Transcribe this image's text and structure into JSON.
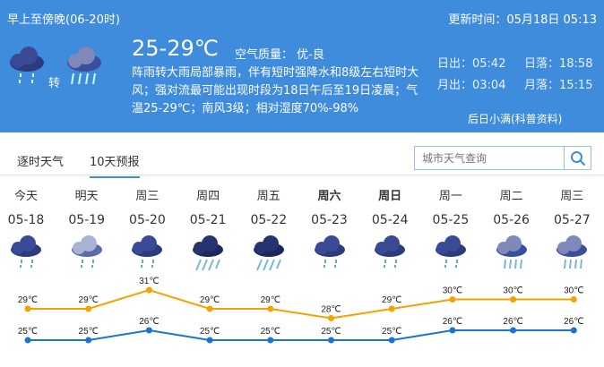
{
  "header": {
    "period": "早上至傍晚(06-20时)",
    "update_time": "更新时间：05月18日 05:13",
    "temp_range": "25-29℃",
    "air_quality": "空气质量： 优-良",
    "transition": "转",
    "description": "阵雨转大雨局部暴雨，伴有短时强降水和8级左右短时大风；强对流最可能出现时段为18日午后至19日凌晨；气温25-29℃；南风3级；相对湿度70%-98%",
    "sunrise": "日出：05:42",
    "sunset": "日落：18:58",
    "moonrise": "月出：03:04",
    "moonset": "月落：15:15",
    "tip_link": "后日小满(科普资料)",
    "icons": [
      "shower-rain-icon",
      "heavy-rain-icon"
    ]
  },
  "tabs": [
    {
      "label": "逐时天气"
    },
    {
      "label": "10天预报",
      "active": true
    }
  ],
  "search": {
    "placeholder": "城市天气查询"
  },
  "forecast": [
    {
      "day": "今天",
      "date": "05-18",
      "icon": "shower",
      "high": "29℃",
      "low": "25℃",
      "bold": false
    },
    {
      "day": "明天",
      "date": "05-19",
      "icon": "light-rain",
      "high": "29℃",
      "low": "25℃",
      "bold": false
    },
    {
      "day": "周三",
      "date": "05-20",
      "icon": "shower",
      "high": "31℃",
      "low": "26℃",
      "bold": false
    },
    {
      "day": "周四",
      "date": "05-21",
      "icon": "rainstorm",
      "high": "29℃",
      "low": "25℃",
      "bold": false
    },
    {
      "day": "周五",
      "date": "05-22",
      "icon": "rainstorm",
      "high": "29℃",
      "low": "25℃",
      "bold": false
    },
    {
      "day": "周六",
      "date": "05-23",
      "icon": "shower",
      "high": "28℃",
      "low": "25℃",
      "bold": true
    },
    {
      "day": "周日",
      "date": "05-24",
      "icon": "shower",
      "high": "29℃",
      "low": "25℃",
      "bold": true
    },
    {
      "day": "周一",
      "date": "05-25",
      "icon": "shower",
      "high": "30℃",
      "low": "26℃",
      "bold": false
    },
    {
      "day": "周二",
      "date": "05-26",
      "icon": "heavy-rain",
      "high": "30℃",
      "low": "26℃",
      "bold": false
    },
    {
      "day": "周三",
      "date": "05-27",
      "icon": "heavy-rain",
      "high": "30℃",
      "low": "26℃",
      "bold": false
    }
  ],
  "chart_data": {
    "type": "line",
    "highs": [
      29,
      29,
      31,
      29,
      29,
      28,
      29,
      30,
      30,
      30
    ],
    "lows": [
      25,
      25,
      26,
      25,
      25,
      25,
      25,
      26,
      26,
      26
    ],
    "colors": {
      "high": "#f5a200",
      "low": "#1a74d2"
    }
  }
}
